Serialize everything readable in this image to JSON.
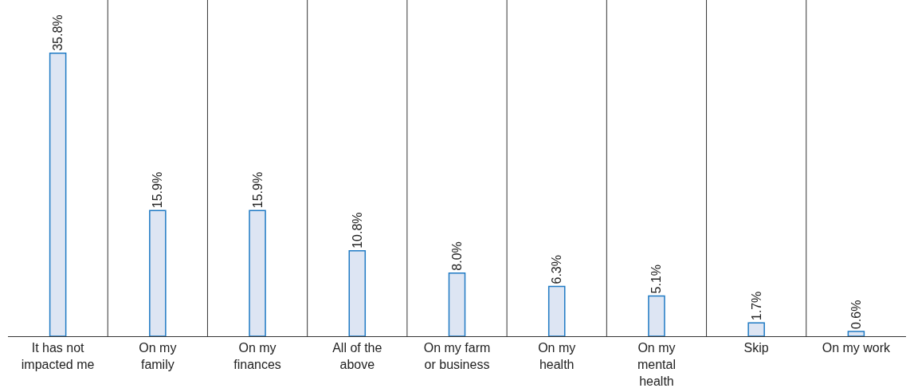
{
  "chart_data": {
    "type": "bar",
    "categories": [
      "It has not impacted me",
      "On my family",
      "On my finances",
      "All of the above",
      "On my farm or business",
      "On my health",
      "On my mental health",
      "Skip",
      "On my work"
    ],
    "values": [
      35.8,
      15.9,
      15.9,
      10.8,
      8.0,
      6.3,
      5.1,
      1.7,
      0.6
    ],
    "value_labels": [
      "35.8%",
      "15.9%",
      "15.9%",
      "10.8%",
      "8.0%",
      "6.3%",
      "5.1%",
      "1.7%",
      "0.6%"
    ],
    "color": "#dde5f3",
    "grid": "x",
    "legend": false
  }
}
